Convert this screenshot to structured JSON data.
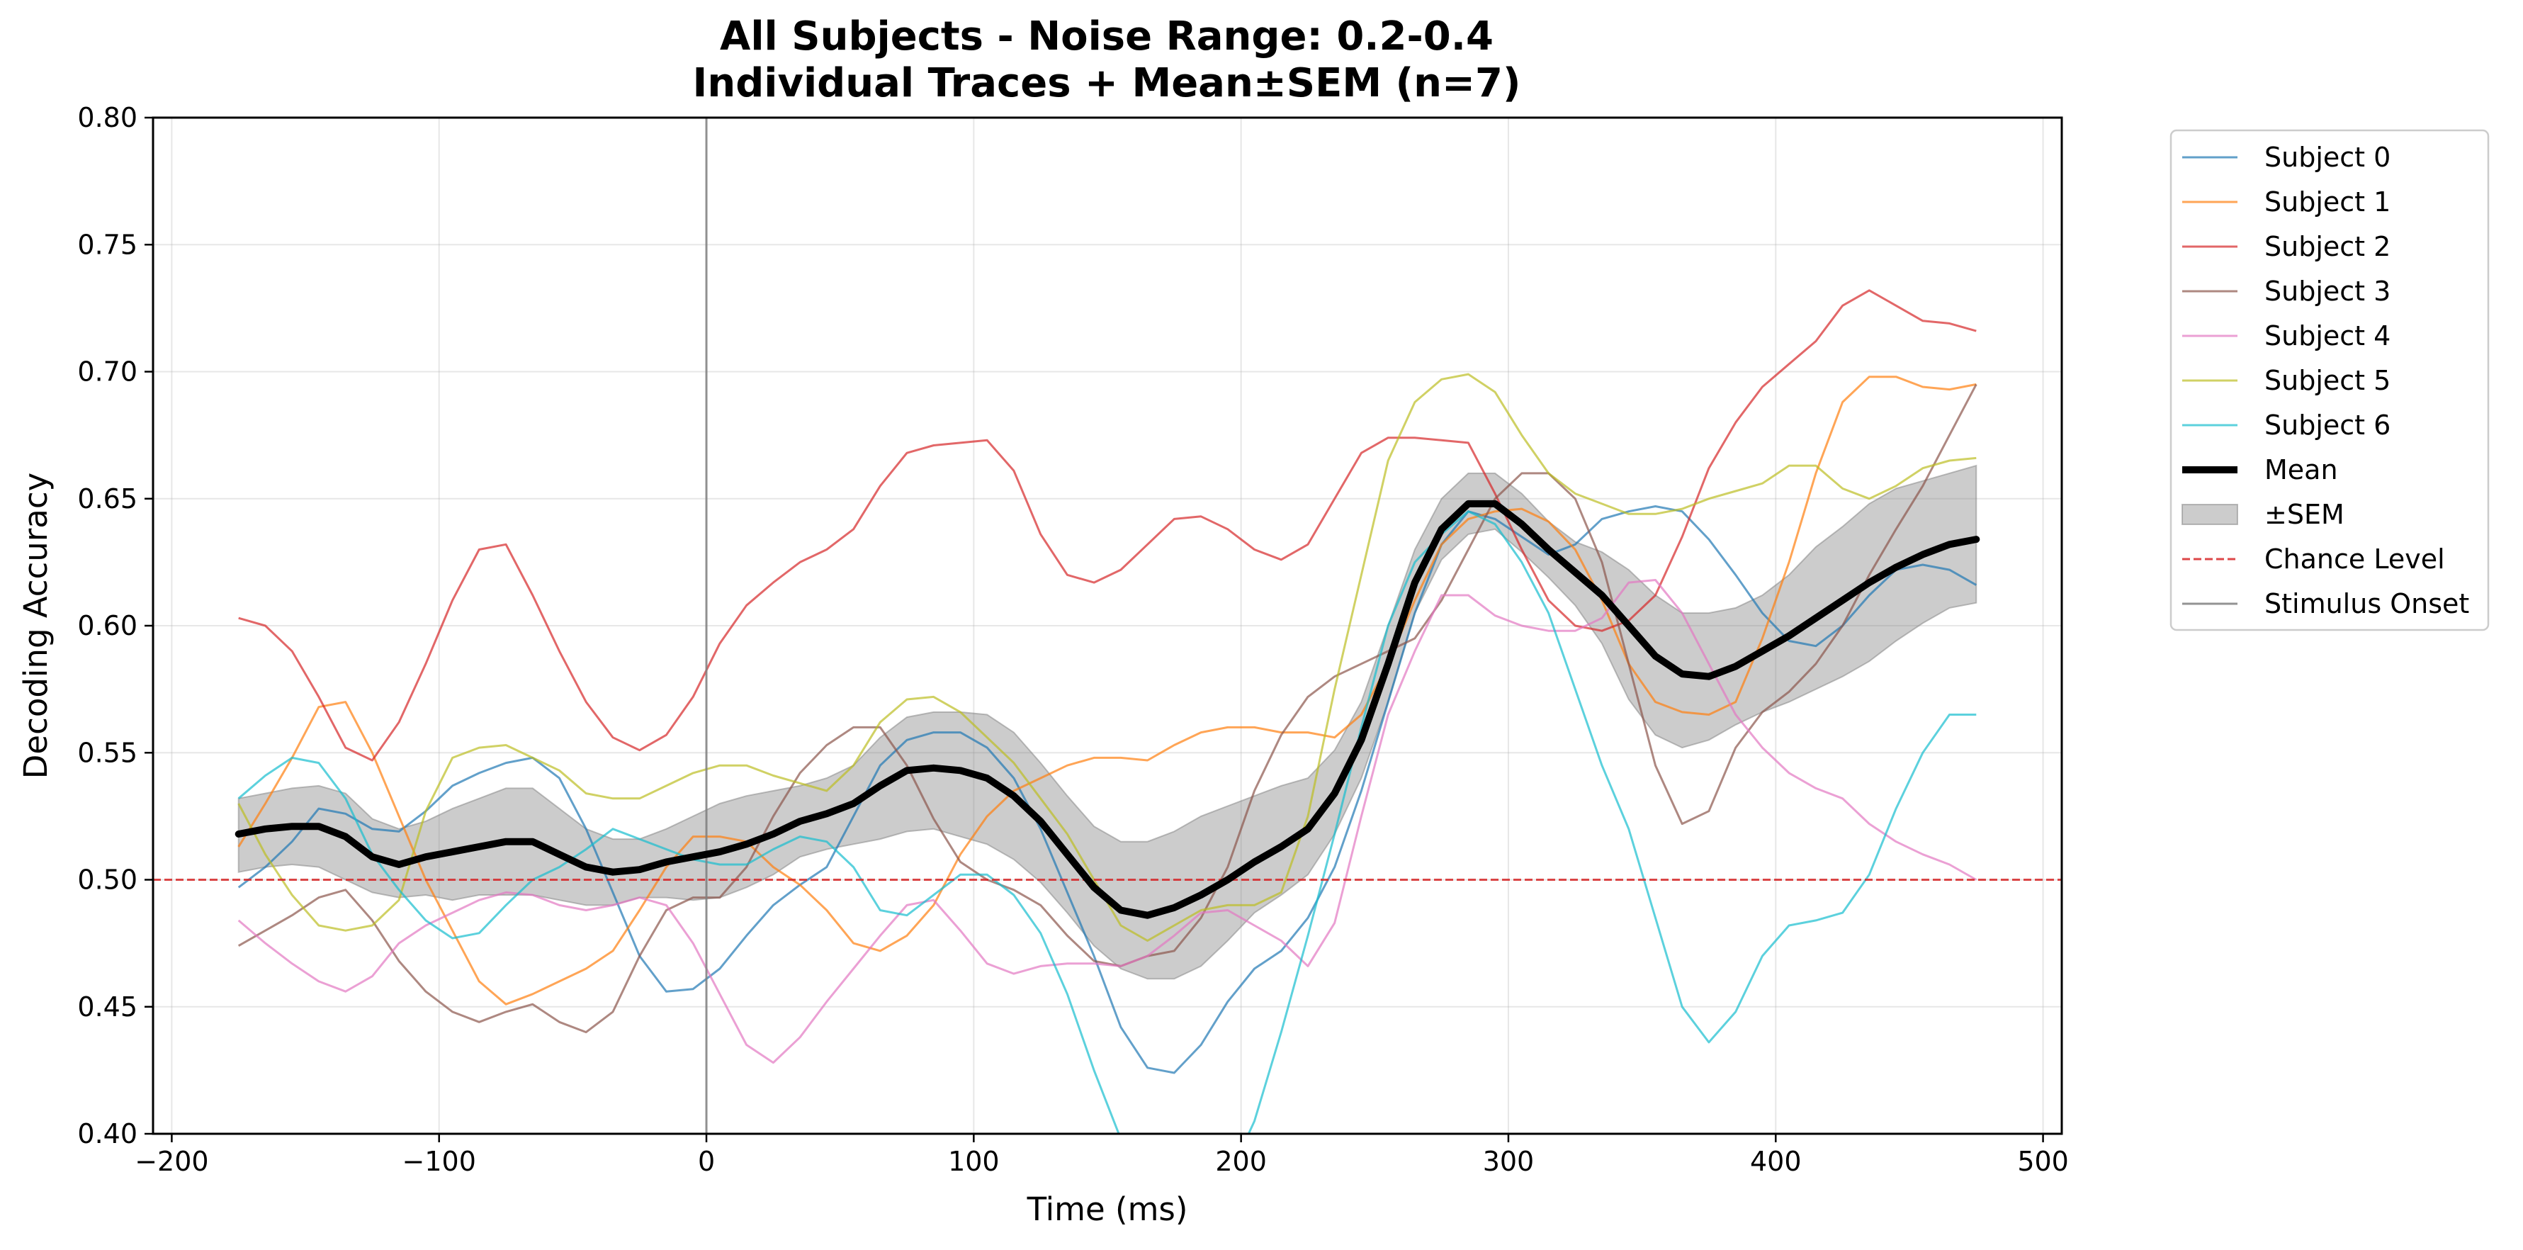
{
  "chart_data": {
    "type": "line",
    "title": "All Subjects - Noise Range: 0.2-0.4",
    "subtitle": "Individual Traces + Mean±SEM (n=7)",
    "xlabel": "Time (ms)",
    "ylabel": "Decoding Accuracy",
    "xlim": [
      -207,
      507
    ],
    "ylim": [
      0.4,
      0.8
    ],
    "x_ticks": [
      -200,
      -100,
      0,
      100,
      200,
      300,
      400,
      500
    ],
    "x_tick_labels": [
      "−200",
      "−100",
      "0",
      "100",
      "200",
      "300",
      "400",
      "500"
    ],
    "y_ticks": [
      0.4,
      0.45,
      0.5,
      0.55,
      0.6,
      0.65,
      0.7,
      0.75,
      0.8
    ],
    "y_tick_labels": [
      "0.40",
      "0.45",
      "0.50",
      "0.55",
      "0.60",
      "0.65",
      "0.70",
      "0.75",
      "0.80"
    ],
    "grid": true,
    "legend_position": "outside-right-top",
    "x": [
      -175,
      -165,
      -155,
      -145,
      -135,
      -125,
      -115,
      -105,
      -95,
      -85,
      -75,
      -65,
      -55,
      -45,
      -35,
      -25,
      -15,
      -5,
      5,
      15,
      25,
      35,
      45,
      55,
      65,
      75,
      85,
      95,
      105,
      115,
      125,
      135,
      145,
      155,
      165,
      175,
      185,
      195,
      205,
      215,
      225,
      235,
      245,
      255,
      265,
      275,
      285,
      295,
      305,
      315,
      325,
      335,
      345,
      355,
      365,
      375,
      385,
      395,
      405,
      415,
      425,
      435,
      445,
      455,
      465,
      475
    ],
    "series": [
      {
        "name": "Subject 0",
        "color": "#1f77b4",
        "values": [
          0.497,
          0.505,
          0.515,
          0.528,
          0.526,
          0.52,
          0.519,
          0.527,
          0.537,
          0.542,
          0.546,
          0.548,
          0.54,
          0.52,
          0.495,
          0.47,
          0.456,
          0.457,
          0.465,
          0.478,
          0.49,
          0.498,
          0.505,
          0.525,
          0.545,
          0.555,
          0.558,
          0.558,
          0.552,
          0.54,
          0.52,
          0.495,
          0.47,
          0.442,
          0.426,
          0.424,
          0.435,
          0.452,
          0.465,
          0.472,
          0.485,
          0.505,
          0.535,
          0.57,
          0.605,
          0.632,
          0.645,
          0.642,
          0.635,
          0.628,
          0.632,
          0.642,
          0.645,
          0.647,
          0.645,
          0.634,
          0.62,
          0.605,
          0.594,
          0.592,
          0.6,
          0.612,
          0.622,
          0.624,
          0.622,
          0.616
        ]
      },
      {
        "name": "Subject 1",
        "color": "#ff7f0e",
        "values": [
          0.513,
          0.53,
          0.548,
          0.568,
          0.57,
          0.55,
          0.525,
          0.5,
          0.48,
          0.46,
          0.451,
          0.455,
          0.46,
          0.465,
          0.472,
          0.488,
          0.505,
          0.517,
          0.517,
          0.515,
          0.505,
          0.498,
          0.488,
          0.475,
          0.472,
          0.478,
          0.49,
          0.51,
          0.525,
          0.535,
          0.54,
          0.545,
          0.548,
          0.548,
          0.547,
          0.553,
          0.558,
          0.56,
          0.56,
          0.558,
          0.558,
          0.556,
          0.565,
          0.585,
          0.61,
          0.632,
          0.642,
          0.645,
          0.646,
          0.641,
          0.63,
          0.61,
          0.585,
          0.57,
          0.566,
          0.565,
          0.57,
          0.595,
          0.625,
          0.66,
          0.688,
          0.698,
          0.698,
          0.694,
          0.693,
          0.695
        ]
      },
      {
        "name": "Subject 2",
        "color": "#d62728",
        "values": [
          0.603,
          0.6,
          0.59,
          0.572,
          0.552,
          0.547,
          0.562,
          0.585,
          0.61,
          0.63,
          0.632,
          0.612,
          0.59,
          0.57,
          0.556,
          0.551,
          0.557,
          0.572,
          0.593,
          0.608,
          0.617,
          0.625,
          0.63,
          0.638,
          0.655,
          0.668,
          0.671,
          0.672,
          0.673,
          0.661,
          0.636,
          0.62,
          0.617,
          0.622,
          0.632,
          0.642,
          0.643,
          0.638,
          0.63,
          0.626,
          0.632,
          0.65,
          0.668,
          0.674,
          0.674,
          0.673,
          0.672,
          0.652,
          0.63,
          0.61,
          0.6,
          0.598,
          0.602,
          0.612,
          0.635,
          0.662,
          0.68,
          0.694,
          0.703,
          0.712,
          0.726,
          0.732,
          0.726,
          0.72,
          0.719,
          0.716
        ]
      },
      {
        "name": "Subject 3",
        "color": "#8c564b",
        "values": [
          0.474,
          0.48,
          0.486,
          0.493,
          0.496,
          0.484,
          0.468,
          0.456,
          0.448,
          0.444,
          0.448,
          0.451,
          0.444,
          0.44,
          0.448,
          0.47,
          0.488,
          0.493,
          0.493,
          0.505,
          0.525,
          0.542,
          0.553,
          0.56,
          0.56,
          0.545,
          0.524,
          0.507,
          0.5,
          0.496,
          0.49,
          0.478,
          0.468,
          0.466,
          0.47,
          0.472,
          0.485,
          0.505,
          0.535,
          0.557,
          0.572,
          0.58,
          0.585,
          0.59,
          0.595,
          0.61,
          0.63,
          0.65,
          0.66,
          0.66,
          0.65,
          0.625,
          0.585,
          0.545,
          0.522,
          0.527,
          0.552,
          0.566,
          0.574,
          0.585,
          0.6,
          0.62,
          0.638,
          0.655,
          0.675,
          0.695
        ]
      },
      {
        "name": "Subject 4",
        "color": "#e377c2",
        "values": [
          0.484,
          0.475,
          0.467,
          0.46,
          0.456,
          0.462,
          0.475,
          0.482,
          0.487,
          0.492,
          0.495,
          0.494,
          0.49,
          0.488,
          0.49,
          0.493,
          0.49,
          0.475,
          0.455,
          0.435,
          0.428,
          0.438,
          0.452,
          0.465,
          0.478,
          0.49,
          0.492,
          0.48,
          0.467,
          0.463,
          0.466,
          0.467,
          0.467,
          0.466,
          0.47,
          0.478,
          0.487,
          0.488,
          0.482,
          0.476,
          0.466,
          0.483,
          0.525,
          0.565,
          0.59,
          0.612,
          0.612,
          0.604,
          0.6,
          0.598,
          0.598,
          0.603,
          0.617,
          0.618,
          0.605,
          0.585,
          0.565,
          0.552,
          0.542,
          0.536,
          0.532,
          0.522,
          0.515,
          0.51,
          0.506,
          0.5
        ]
      },
      {
        "name": "Subject 5",
        "color": "#bcbd22",
        "values": [
          0.53,
          0.51,
          0.494,
          0.482,
          0.48,
          0.482,
          0.492,
          0.527,
          0.548,
          0.552,
          0.553,
          0.548,
          0.543,
          0.534,
          0.532,
          0.532,
          0.537,
          0.542,
          0.545,
          0.545,
          0.541,
          0.538,
          0.535,
          0.545,
          0.562,
          0.571,
          0.572,
          0.566,
          0.556,
          0.546,
          0.532,
          0.518,
          0.5,
          0.482,
          0.476,
          0.482,
          0.488,
          0.49,
          0.49,
          0.495,
          0.525,
          0.575,
          0.62,
          0.665,
          0.688,
          0.697,
          0.699,
          0.692,
          0.675,
          0.66,
          0.652,
          0.648,
          0.644,
          0.644,
          0.646,
          0.65,
          0.653,
          0.656,
          0.663,
          0.663,
          0.654,
          0.65,
          0.655,
          0.662,
          0.665,
          0.666
        ]
      },
      {
        "name": "Subject 6",
        "color": "#17becf",
        "values": [
          0.532,
          0.541,
          0.548,
          0.546,
          0.532,
          0.51,
          0.496,
          0.484,
          0.477,
          0.479,
          0.49,
          0.5,
          0.505,
          0.512,
          0.52,
          0.516,
          0.512,
          0.508,
          0.506,
          0.506,
          0.512,
          0.517,
          0.515,
          0.505,
          0.488,
          0.486,
          0.494,
          0.502,
          0.502,
          0.494,
          0.479,
          0.455,
          0.425,
          0.398,
          0.375,
          0.365,
          0.368,
          0.382,
          0.405,
          0.44,
          0.478,
          0.518,
          0.56,
          0.6,
          0.625,
          0.636,
          0.645,
          0.64,
          0.625,
          0.605,
          0.575,
          0.545,
          0.52,
          0.485,
          0.45,
          0.436,
          0.448,
          0.47,
          0.482,
          0.484,
          0.487,
          0.502,
          0.528,
          0.55,
          0.565,
          0.565
        ]
      }
    ],
    "mean": {
      "name": "Mean",
      "color": "#000000",
      "values": [
        0.518,
        0.52,
        0.521,
        0.521,
        0.517,
        0.509,
        0.506,
        0.509,
        0.511,
        0.513,
        0.515,
        0.515,
        0.51,
        0.505,
        0.503,
        0.504,
        0.507,
        0.509,
        0.511,
        0.514,
        0.518,
        0.523,
        0.526,
        0.53,
        0.537,
        0.543,
        0.544,
        0.543,
        0.54,
        0.533,
        0.523,
        0.51,
        0.497,
        0.488,
        0.486,
        0.489,
        0.494,
        0.5,
        0.507,
        0.513,
        0.52,
        0.534,
        0.555,
        0.585,
        0.617,
        0.638,
        0.648,
        0.648,
        0.64,
        0.63,
        0.621,
        0.612,
        0.6,
        0.588,
        0.581,
        0.58,
        0.584,
        0.59,
        0.596,
        0.603,
        0.61,
        0.617,
        0.623,
        0.628,
        0.632,
        0.634
      ]
    },
    "sem": {
      "name": "±SEM",
      "color": "#808080",
      "lower": [
        0.503,
        0.505,
        0.506,
        0.505,
        0.5,
        0.495,
        0.493,
        0.494,
        0.492,
        0.494,
        0.494,
        0.494,
        0.492,
        0.49,
        0.49,
        0.493,
        0.493,
        0.492,
        0.493,
        0.497,
        0.502,
        0.509,
        0.512,
        0.514,
        0.516,
        0.519,
        0.52,
        0.517,
        0.514,
        0.508,
        0.499,
        0.487,
        0.474,
        0.465,
        0.461,
        0.461,
        0.466,
        0.476,
        0.487,
        0.494,
        0.502,
        0.518,
        0.54,
        0.57,
        0.605,
        0.626,
        0.636,
        0.638,
        0.629,
        0.619,
        0.608,
        0.593,
        0.571,
        0.557,
        0.552,
        0.555,
        0.561,
        0.566,
        0.57,
        0.575,
        0.58,
        0.586,
        0.594,
        0.601,
        0.607,
        0.609
      ],
      "upper": [
        0.532,
        0.534,
        0.536,
        0.537,
        0.534,
        0.524,
        0.52,
        0.523,
        0.528,
        0.532,
        0.536,
        0.536,
        0.528,
        0.52,
        0.516,
        0.516,
        0.52,
        0.525,
        0.53,
        0.533,
        0.535,
        0.537,
        0.54,
        0.545,
        0.556,
        0.564,
        0.566,
        0.566,
        0.565,
        0.558,
        0.546,
        0.533,
        0.521,
        0.515,
        0.515,
        0.519,
        0.525,
        0.529,
        0.533,
        0.537,
        0.54,
        0.551,
        0.57,
        0.6,
        0.63,
        0.65,
        0.66,
        0.66,
        0.652,
        0.641,
        0.633,
        0.629,
        0.622,
        0.612,
        0.605,
        0.605,
        0.607,
        0.612,
        0.62,
        0.631,
        0.639,
        0.648,
        0.654,
        0.657,
        0.66,
        0.663
      ]
    },
    "reference_lines": [
      {
        "name": "Chance Level",
        "orientation": "horizontal",
        "value": 0.5,
        "color": "#d62728",
        "style": "dashed"
      },
      {
        "name": "Stimulus Onset",
        "orientation": "vertical",
        "value": 0,
        "color": "#808080",
        "style": "solid"
      }
    ]
  }
}
